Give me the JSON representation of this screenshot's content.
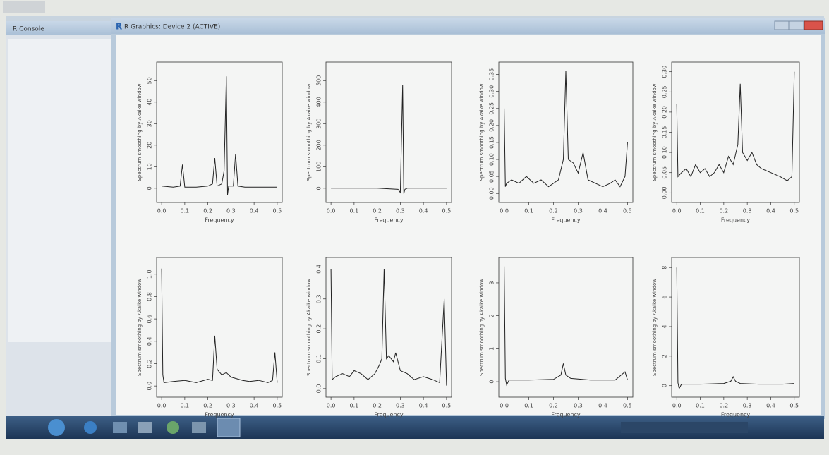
{
  "windows": {
    "console_title": "R Console",
    "graphics_title": "R Graphics: Device 2 (ACTIVE)"
  },
  "chart_data": [
    {
      "type": "line",
      "xlabel": "Frequency",
      "ylabel": "Spectrum smoothing by Akaike window",
      "color": "#222222",
      "x": [
        0,
        0.05,
        0.08,
        0.09,
        0.1,
        0.15,
        0.2,
        0.22,
        0.23,
        0.24,
        0.26,
        0.27,
        0.28,
        0.285,
        0.29,
        0.31,
        0.32,
        0.33,
        0.36,
        0.42,
        0.5
      ],
      "values": [
        1,
        0.5,
        1,
        11,
        0.5,
        0.5,
        1,
        2,
        14,
        1,
        2,
        8,
        52,
        -3,
        1,
        1,
        16,
        1,
        0.5,
        0.5,
        0.5
      ],
      "xlim": [
        0,
        0.5
      ],
      "ylim": [
        -4,
        56
      ],
      "xticks": [
        {
          "value": 0,
          "label": "0.0"
        },
        0.1,
        0.2,
        0.3,
        0.4,
        0.5
      ],
      "yticks": [
        0,
        10,
        20,
        30,
        40,
        50
      ]
    },
    {
      "type": "line",
      "xlabel": "Frequency",
      "ylabel": "Spectrum smoothing by Akaike window",
      "color": "#222222",
      "x": [
        0,
        0.1,
        0.2,
        0.29,
        0.3,
        0.31,
        0.315,
        0.32,
        0.33,
        0.4,
        0.5
      ],
      "values": [
        0,
        0,
        0,
        -5,
        -20,
        480,
        -25,
        -5,
        0,
        0,
        0
      ],
      "xlim": [
        0,
        0.5
      ],
      "ylim": [
        -40,
        560
      ],
      "xticks": [
        {
          "value": 0,
          "label": "0.0"
        },
        0.1,
        0.2,
        0.3,
        0.4,
        0.5
      ],
      "yticks": [
        0,
        100,
        200,
        300,
        400,
        500
      ]
    },
    {
      "type": "line",
      "xlabel": "Frequency",
      "ylabel": "Spectrum smoothing by Akaike window",
      "color": "#222222",
      "x": [
        0,
        0.005,
        0.01,
        0.03,
        0.06,
        0.09,
        0.12,
        0.15,
        0.18,
        0.2,
        0.22,
        0.24,
        0.25,
        0.26,
        0.28,
        0.3,
        0.32,
        0.34,
        0.37,
        0.4,
        0.43,
        0.45,
        0.47,
        0.49,
        0.5
      ],
      "values": [
        0.25,
        0.02,
        0.03,
        0.04,
        0.03,
        0.05,
        0.03,
        0.04,
        0.02,
        0.03,
        0.04,
        0.1,
        0.36,
        0.1,
        0.09,
        0.06,
        0.12,
        0.04,
        0.03,
        0.02,
        0.03,
        0.04,
        0.02,
        0.05,
        0.15
      ],
      "xlim": [
        0,
        0.5
      ],
      "ylim": [
        -0.01,
        0.37
      ],
      "xticks": [
        {
          "value": 0,
          "label": "0.0"
        },
        0.1,
        0.2,
        0.3,
        0.4,
        0.5
      ],
      "yticks": [
        {
          "value": 0,
          "label": "0.00"
        },
        0.05,
        {
          "value": 0.1,
          "label": "0.10"
        },
        0.15,
        {
          "value": 0.2,
          "label": "0.20"
        },
        0.25,
        {
          "value": 0.3,
          "label": "0.30"
        },
        0.35
      ]
    },
    {
      "type": "line",
      "xlabel": "Frequency",
      "ylabel": "Spectrum smoothing by Akaike window",
      "color": "#222222",
      "x": [
        0,
        0.005,
        0.02,
        0.04,
        0.06,
        0.08,
        0.1,
        0.12,
        0.14,
        0.16,
        0.18,
        0.2,
        0.22,
        0.24,
        0.26,
        0.27,
        0.28,
        0.3,
        0.32,
        0.34,
        0.36,
        0.4,
        0.44,
        0.47,
        0.49,
        0.5
      ],
      "values": [
        0.22,
        0.04,
        0.05,
        0.06,
        0.04,
        0.07,
        0.05,
        0.06,
        0.04,
        0.05,
        0.07,
        0.05,
        0.09,
        0.07,
        0.12,
        0.27,
        0.1,
        0.08,
        0.1,
        0.07,
        0.06,
        0.05,
        0.04,
        0.03,
        0.04,
        0.3
      ],
      "xlim": [
        0,
        0.5
      ],
      "ylim": [
        -0.01,
        0.31
      ],
      "xticks": [
        {
          "value": 0,
          "label": "0.0"
        },
        0.1,
        0.2,
        0.3,
        0.4,
        0.5
      ],
      "yticks": [
        {
          "value": 0,
          "label": "0.00"
        },
        0.05,
        {
          "value": 0.1,
          "label": "0.10"
        },
        0.15,
        {
          "value": 0.2,
          "label": "0.20"
        },
        0.25,
        {
          "value": 0.3,
          "label": "0.30"
        }
      ]
    },
    {
      "type": "line",
      "xlabel": "Frequency",
      "ylabel": "Spectrum smoothing by Akaike window",
      "color": "#222222",
      "x": [
        0,
        0.005,
        0.01,
        0.05,
        0.1,
        0.15,
        0.2,
        0.22,
        0.23,
        0.24,
        0.26,
        0.28,
        0.3,
        0.35,
        0.38,
        0.42,
        0.46,
        0.48,
        0.49,
        0.5
      ],
      "values": [
        1.05,
        0.1,
        0.03,
        0.04,
        0.05,
        0.03,
        0.06,
        0.05,
        0.45,
        0.15,
        0.1,
        0.12,
        0.08,
        0.05,
        0.04,
        0.05,
        0.03,
        0.05,
        0.3,
        0.03
      ],
      "xlim": [
        0,
        0.5
      ],
      "ylim": [
        -0.05,
        1.1
      ],
      "xticks": [
        {
          "value": 0,
          "label": "0.0"
        },
        0.1,
        0.2,
        0.3,
        0.4,
        0.5
      ],
      "yticks": [
        {
          "value": 0,
          "label": "0.0"
        },
        0.2,
        0.4,
        0.6,
        0.8,
        {
          "value": 1,
          "label": "1.0"
        }
      ]
    },
    {
      "type": "line",
      "xlabel": "Frequency",
      "ylabel": "Spectrum smoothing by Akaike window",
      "color": "#222222",
      "x": [
        0,
        0.005,
        0.02,
        0.05,
        0.08,
        0.1,
        0.13,
        0.16,
        0.19,
        0.21,
        0.22,
        0.23,
        0.24,
        0.25,
        0.27,
        0.28,
        0.3,
        0.33,
        0.36,
        0.4,
        0.44,
        0.47,
        0.49,
        0.5
      ],
      "values": [
        0.4,
        0.03,
        0.04,
        0.05,
        0.04,
        0.06,
        0.05,
        0.03,
        0.05,
        0.08,
        0.1,
        0.4,
        0.1,
        0.11,
        0.09,
        0.12,
        0.06,
        0.05,
        0.03,
        0.04,
        0.03,
        0.02,
        0.3,
        0.01
      ],
      "xlim": [
        0,
        0.5
      ],
      "ylim": [
        -0.01,
        0.42
      ],
      "xticks": [
        {
          "value": 0,
          "label": "0.0"
        },
        0.1,
        0.2,
        0.3,
        0.4,
        0.5
      ],
      "yticks": [
        {
          "value": 0,
          "label": "0.0"
        },
        0.1,
        0.2,
        0.3,
        0.4
      ]
    },
    {
      "type": "line",
      "xlabel": "Frequency",
      "ylabel": "Spectrum smoothing by Akaike window",
      "color": "#222222",
      "x": [
        0,
        0.005,
        0.01,
        0.02,
        0.1,
        0.2,
        0.23,
        0.24,
        0.25,
        0.27,
        0.35,
        0.45,
        0.49,
        0.5
      ],
      "values": [
        3.5,
        0.1,
        -0.1,
        0.05,
        0.05,
        0.07,
        0.2,
        0.55,
        0.2,
        0.1,
        0.05,
        0.05,
        0.3,
        0.05
      ],
      "xlim": [
        0,
        0.5
      ],
      "ylim": [
        -0.3,
        3.6
      ],
      "xticks": [
        {
          "value": 0,
          "label": "0.0"
        },
        0.1,
        0.2,
        0.3,
        0.4,
        0.5
      ],
      "yticks": [
        0,
        1,
        2,
        3
      ]
    },
    {
      "type": "line",
      "xlabel": "Frequency",
      "ylabel": "Spectrum smoothing by Akaike window",
      "color": "#222222",
      "x": [
        0,
        0.005,
        0.01,
        0.02,
        0.1,
        0.2,
        0.23,
        0.24,
        0.25,
        0.27,
        0.35,
        0.45,
        0.5
      ],
      "values": [
        8,
        0.2,
        -0.2,
        0.1,
        0.1,
        0.15,
        0.3,
        0.6,
        0.3,
        0.15,
        0.1,
        0.1,
        0.15
      ],
      "xlim": [
        0,
        0.5
      ],
      "ylim": [
        -0.4,
        8.3
      ],
      "xticks": [
        {
          "value": 0,
          "label": "0.0"
        },
        0.1,
        0.2,
        0.3,
        0.4,
        0.5
      ],
      "yticks": [
        0,
        2,
        4,
        6,
        8
      ]
    }
  ]
}
